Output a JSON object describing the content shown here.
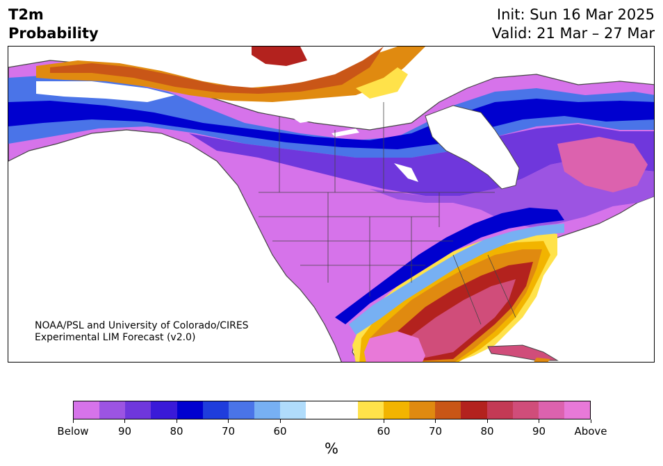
{
  "title": {
    "line1": "T2m",
    "line2": "Probability"
  },
  "dates": {
    "init": "Init: Sun 16 Mar 2025",
    "valid": "Valid: 21 Mar – 27 Mar"
  },
  "credit": {
    "line1": "NOAA/PSL and University of Colorado/CIRES",
    "line2": "Experimental LIM Forecast (v2.0)"
  },
  "colorbar": {
    "units": "%",
    "colors": [
      "#d673ea",
      "#9c54e2",
      "#6f37dc",
      "#3a1ad8",
      "#0000cf",
      "#1f3ddc",
      "#4a74e8",
      "#77b0f3",
      "#b0dcfb",
      "#ffffff",
      "#ffffff",
      "#ffe24a",
      "#f2b400",
      "#e08a10",
      "#c95617",
      "#b3221e",
      "#c33a55",
      "#d04d7a",
      "#dc62ae",
      "#e879d8"
    ],
    "tick_labels": [
      "Below",
      "90",
      "80",
      "70",
      "60",
      "60",
      "70",
      "80",
      "90",
      "Above"
    ]
  },
  "map": {
    "region": "North America",
    "legend_meaning": {
      "cool_colors": "probability of below-normal 2m temperature",
      "warm_colors": "probability of above-normal 2m temperature",
      "white": "near-normal / low signal"
    }
  }
}
